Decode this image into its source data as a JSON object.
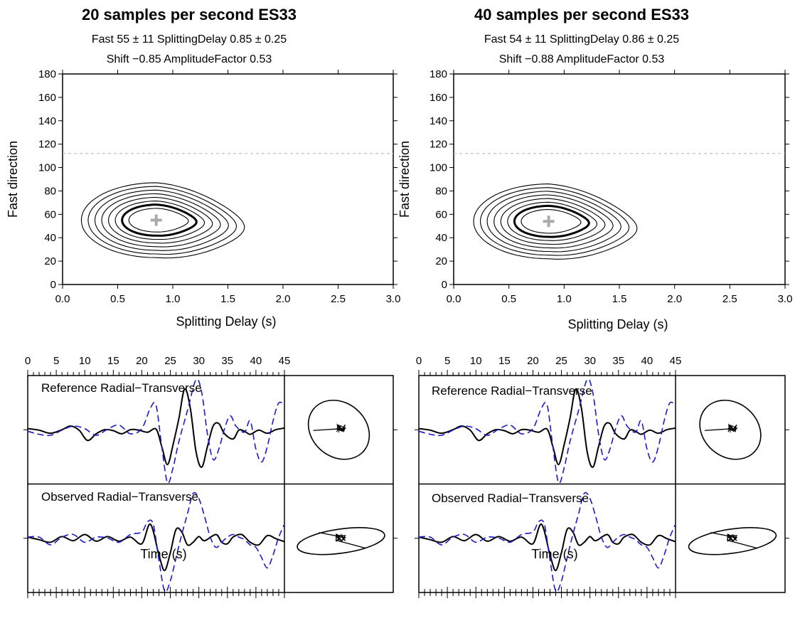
{
  "figure": {
    "panels": [
      {
        "title": "20 samples per second ES33",
        "line1": "Fast 55 ± 11 SplittingDelay 0.85 ± 0.25",
        "line2": "Shift −0.85 AmplitudeFactor 0.53"
      },
      {
        "title": "40 samples per second ES33",
        "line1": "Fast 54 ± 11 SplittingDelay 0.86 ± 0.25",
        "line2": "Shift −0.88 AmplitudeFactor 0.53"
      }
    ],
    "contour_xlabel": "Splitting Delay (s)",
    "contour_ylabel": "Fast direction",
    "wave_xlabel": "Time (s)",
    "reference_label": "Reference Radial−Transverse",
    "observed_label": "Observed Radial−Transverse",
    "colors": {
      "radial": "#000000",
      "transverse": "#1a1acc",
      "best_fit": "#aaaaaa",
      "reference_line": "#bbbbbb"
    }
  },
  "chart_data": [
    {
      "type": "contour",
      "title": "20 samples per second ES33",
      "xlabel": "Splitting Delay (s)",
      "ylabel": "Fast direction",
      "xlim": [
        0,
        3
      ],
      "ylim": [
        0,
        180
      ],
      "xticks": [
        "0.0",
        "0.5",
        "1.0",
        "1.5",
        "2.0",
        "2.5",
        "3.0"
      ],
      "yticks": [
        "0",
        "20",
        "40",
        "60",
        "80",
        "100",
        "120",
        "140",
        "160",
        "180"
      ],
      "best_fit": {
        "delay": 0.85,
        "fast": 55
      },
      "contour_levels": 8,
      "confidence_contour_index": 2,
      "reference_line_fast": 112
    },
    {
      "type": "contour",
      "title": "40 samples per second ES33",
      "xlabel": "Splitting Delay (s)",
      "ylabel": "Fast direction",
      "xlim": [
        0,
        3
      ],
      "ylim": [
        0,
        180
      ],
      "xticks": [
        "0.0",
        "0.5",
        "1.0",
        "1.5",
        "2.0",
        "2.5",
        "3.0"
      ],
      "yticks": [
        "0",
        "20",
        "40",
        "60",
        "80",
        "100",
        "120",
        "140",
        "160",
        "180"
      ],
      "best_fit": {
        "delay": 0.86,
        "fast": 54
      },
      "contour_levels": 8,
      "confidence_contour_index": 2,
      "reference_line_fast": 112
    },
    {
      "type": "line",
      "label": "Reference Radial−Transverse",
      "xlabel": "Time (s)",
      "xlim": [
        0,
        45
      ],
      "xticks": [
        "0",
        "5",
        "10",
        "15",
        "20",
        "25",
        "30",
        "35",
        "40",
        "45"
      ],
      "series": [
        {
          "values": [
            [
              0,
              0.05
            ],
            [
              2,
              0.02
            ],
            [
              4,
              -0.04
            ],
            [
              6,
              0.03
            ],
            [
              7.5,
              0.1
            ],
            [
              9,
              0.02
            ],
            [
              10.5,
              -0.18
            ],
            [
              12,
              -0.05
            ],
            [
              13.5,
              0.03
            ],
            [
              15,
              0.01
            ],
            [
              16.5,
              -0.05
            ],
            [
              18,
              0.03
            ],
            [
              19.5,
              0.02
            ],
            [
              21,
              -0.02
            ],
            [
              22.5,
              0.04
            ],
            [
              23.5,
              -0.3
            ],
            [
              24.5,
              -0.65
            ],
            [
              25.5,
              -0.25
            ],
            [
              26.5,
              0.25
            ],
            [
              27.5,
              0.82
            ],
            [
              28.5,
              0.45
            ],
            [
              29.5,
              -0.4
            ],
            [
              30.5,
              -0.7
            ],
            [
              31.5,
              -0.3
            ],
            [
              32.5,
              0.1
            ],
            [
              33.5,
              0.15
            ],
            [
              34.5,
              -0.05
            ],
            [
              36,
              -0.15
            ],
            [
              37,
              0.02
            ],
            [
              38,
              0.0
            ],
            [
              39,
              -0.06
            ],
            [
              40.5,
              0.02
            ],
            [
              42,
              -0.04
            ],
            [
              43.5,
              0.03
            ],
            [
              45,
              0.06
            ]
          ]
        },
        {
          "values": [
            [
              0,
              0.0
            ],
            [
              2,
              -0.06
            ],
            [
              4,
              -0.08
            ],
            [
              6,
              0.02
            ],
            [
              8,
              0.1
            ],
            [
              10,
              0.05
            ],
            [
              12,
              -0.08
            ],
            [
              14,
              0.04
            ],
            [
              16,
              0.12
            ],
            [
              18,
              -0.05
            ],
            [
              20,
              0.05
            ],
            [
              21.5,
              0.45
            ],
            [
              22.5,
              0.5
            ],
            [
              23.5,
              -0.3
            ],
            [
              24.5,
              -1.0
            ],
            [
              25.5,
              -0.7
            ],
            [
              26.5,
              -0.2
            ],
            [
              28,
              0.4
            ],
            [
              29.5,
              1.0
            ],
            [
              30.5,
              0.75
            ],
            [
              31.5,
              -0.05
            ],
            [
              32.5,
              -0.55
            ],
            [
              33.5,
              -0.35
            ],
            [
              34.5,
              0.05
            ],
            [
              35.5,
              0.3
            ],
            [
              36.5,
              0.1
            ],
            [
              38,
              -0.02
            ],
            [
              39,
              0.2
            ],
            [
              40,
              -0.35
            ],
            [
              41,
              -0.6
            ],
            [
              42,
              -0.3
            ],
            [
              43,
              0.2
            ],
            [
              44,
              0.55
            ],
            [
              45,
              0.5
            ]
          ]
        }
      ]
    },
    {
      "type": "line",
      "label": "Observed Radial−Transverse",
      "xlabel": "Time (s)",
      "xlim": [
        0,
        45
      ],
      "xticks": [
        "0",
        "5",
        "10",
        "15",
        "20",
        "25",
        "30",
        "35",
        "40",
        "45"
      ],
      "series": [
        {
          "values": [
            [
              0,
              0.05
            ],
            [
              2,
              0.0
            ],
            [
              4,
              -0.05
            ],
            [
              6,
              0.06
            ],
            [
              8,
              -0.02
            ],
            [
              10,
              0.1
            ],
            [
              12,
              -0.03
            ],
            [
              14,
              0.06
            ],
            [
              16,
              -0.03
            ],
            [
              18,
              0.05
            ],
            [
              20,
              -0.08
            ],
            [
              21.5,
              0.3
            ],
            [
              23,
              -0.3
            ],
            [
              24,
              -0.6
            ],
            [
              25,
              -0.25
            ],
            [
              26,
              0.2
            ],
            [
              27,
              0.15
            ],
            [
              28,
              -0.1
            ],
            [
              29,
              -0.05
            ],
            [
              30,
              0.06
            ],
            [
              31,
              -0.02
            ],
            [
              33,
              0.1
            ],
            [
              34,
              -0.05
            ],
            [
              35,
              -0.08
            ],
            [
              36,
              0.05
            ],
            [
              37.5,
              0.1
            ],
            [
              39,
              -0.05
            ],
            [
              40.5,
              -0.1
            ],
            [
              42,
              0.08
            ],
            [
              43.5,
              0.02
            ],
            [
              45,
              -0.04
            ]
          ]
        },
        {
          "values": [
            [
              0,
              0.05
            ],
            [
              2,
              0.05
            ],
            [
              4,
              -0.1
            ],
            [
              6,
              0.05
            ],
            [
              8,
              0.1
            ],
            [
              10,
              -0.05
            ],
            [
              12,
              0.05
            ],
            [
              14,
              0.03
            ],
            [
              16,
              -0.05
            ],
            [
              18,
              0.1
            ],
            [
              20,
              0.15
            ],
            [
              21,
              0.35
            ],
            [
              22,
              0.3
            ],
            [
              23,
              -0.4
            ],
            [
              24,
              -1.0
            ],
            [
              25,
              -0.8
            ],
            [
              26,
              -0.35
            ],
            [
              27,
              0.1
            ],
            [
              28,
              0.5
            ],
            [
              29,
              0.9
            ],
            [
              30,
              0.8
            ],
            [
              31,
              0.45
            ],
            [
              32,
              0.05
            ],
            [
              33,
              -0.15
            ],
            [
              34,
              -0.05
            ],
            [
              35,
              0.05
            ],
            [
              36,
              0.1
            ],
            [
              37,
              0.05
            ],
            [
              38,
              0.0
            ],
            [
              39,
              -0.1
            ],
            [
              40,
              -0.15
            ],
            [
              41,
              -0.35
            ],
            [
              42,
              -0.55
            ],
            [
              43,
              -0.3
            ],
            [
              44,
              0.05
            ],
            [
              45,
              0.3
            ]
          ]
        }
      ]
    }
  ]
}
